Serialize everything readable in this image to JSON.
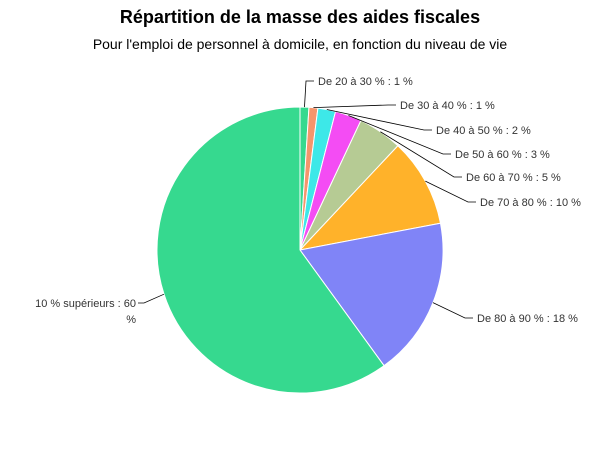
{
  "chart_data": {
    "type": "pie",
    "title": "Répartition de la masse des aides fiscales",
    "subtitle": "Pour l'emploi de personnel à domicile, en fonction du niveau de vie",
    "start_angle_deg": 0,
    "direction": "clockwise",
    "slices": [
      {
        "label": "De 20 à 30 % : 1 %",
        "value": 1,
        "color": "#36d98f"
      },
      {
        "label": "De 30 à 40 % : 1 %",
        "value": 1,
        "color": "#f5956c"
      },
      {
        "label": "De 40 à 50 % : 2 %",
        "value": 2,
        "color": "#3de8e8"
      },
      {
        "label": "De 50 à 60 % : 3 %",
        "value": 3,
        "color": "#f44cf4"
      },
      {
        "label": "De 60 à 70 % : 5 %",
        "value": 5,
        "color": "#b6cb94"
      },
      {
        "label": "De 70 à 80 % : 10 %",
        "value": 10,
        "color": "#ffb22a"
      },
      {
        "label": "De 80 à 90 % : 18 %",
        "value": 18,
        "color": "#8084f7"
      },
      {
        "label": "10 % supérieurs : 60 %",
        "value": 60,
        "color": "#36d98f"
      }
    ]
  }
}
